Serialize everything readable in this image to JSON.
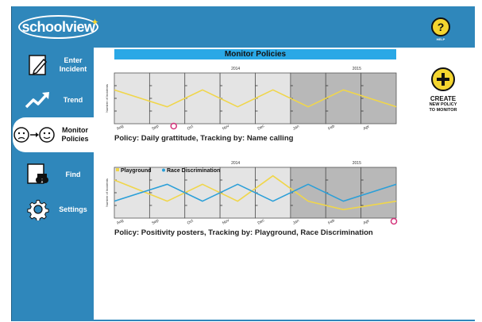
{
  "app": {
    "logo_school": "school",
    "logo_view": "view",
    "help_label": "HELP",
    "help_symbol": "?"
  },
  "nav": [
    {
      "label": "Enter\nIncident",
      "icon": "pencil-paper-icon",
      "active": false
    },
    {
      "label": "Trend",
      "icon": "trend-arrow-icon",
      "active": false
    },
    {
      "label": "Monitor\nPolicies",
      "icon": "faces-transition-icon",
      "active": true
    },
    {
      "label": "Find",
      "icon": "binoculars-icon",
      "active": false
    },
    {
      "label": "Settings",
      "icon": "gear-icon",
      "active": false
    }
  ],
  "main": {
    "title": "Monitor Policies",
    "create_label": "CREATE",
    "create_sub": "NEW POLICY\nTO MONITOR"
  },
  "colors": {
    "frame_blue": "#2f87bb",
    "title_blue": "#2aa8e6",
    "yellow": "#f4d52f",
    "series_blue": "#2a9fd8",
    "series_yellow": "#f0d64a",
    "marker_pink": "#d4317a"
  },
  "chart_data": [
    {
      "type": "line",
      "ylabel": "Number of Incidents",
      "year_labels": [
        "2014",
        "2015"
      ],
      "categories": [
        "Aug",
        "Sep",
        "Oct",
        "Nov",
        "Dec",
        "Jan",
        "Feb",
        "Apr"
      ],
      "shaded_from_index": 5,
      "series": [
        {
          "name": "",
          "color": "#f0d64a",
          "values": [
            4,
            2,
            4,
            2,
            4,
            2,
            4,
            2
          ]
        }
      ],
      "ylim": [
        0,
        6
      ],
      "marker_after_index": 1,
      "caption": "Policy: Daily grattitude, Tracking by: Name calling"
    },
    {
      "type": "line",
      "ylabel": "Number of Incidents",
      "year_labels": [
        "2014",
        "2015"
      ],
      "categories": [
        "Aug",
        "Sep",
        "Oct",
        "Nov",
        "Dec",
        "Jan",
        "Feb",
        "Apr"
      ],
      "shaded_from_index": 5,
      "legend": [
        "Playground",
        "Race Discrimination"
      ],
      "series": [
        {
          "name": "Playground",
          "color": "#f0d64a",
          "values": [
            4.5,
            2,
            4,
            2,
            5,
            2,
            1,
            2
          ]
        },
        {
          "name": "Race Discrimination",
          "color": "#2a9fd8",
          "values": [
            2,
            4,
            2,
            4,
            2,
            4,
            2,
            4
          ]
        }
      ],
      "ylim": [
        0,
        6
      ],
      "marker_at_end": true,
      "caption": "Policy: Positivity posters, Tracking by: Playground, Race Discrimination"
    }
  ]
}
